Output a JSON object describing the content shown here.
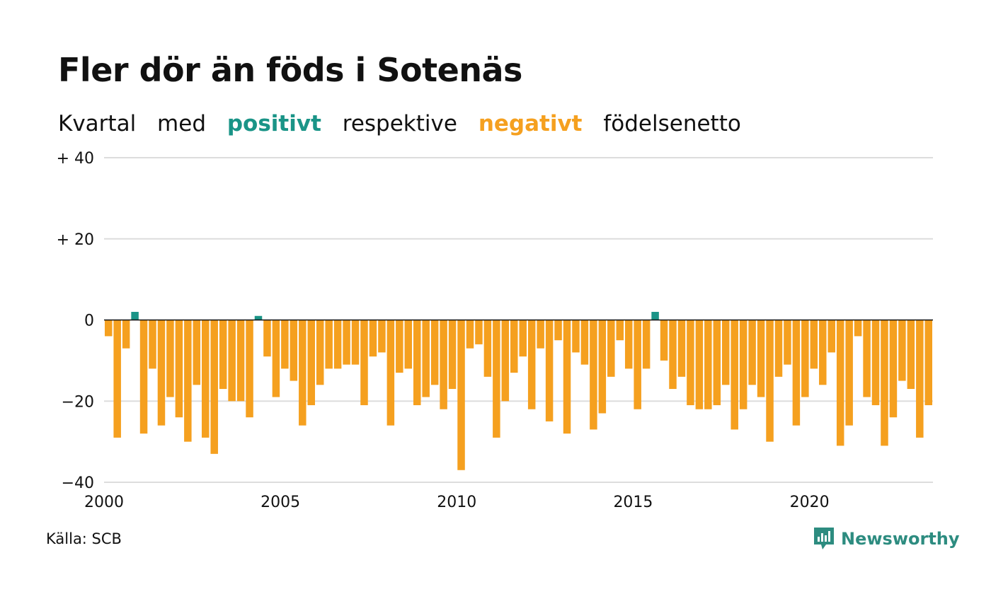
{
  "title": "Fler dör än föds i Sotenäs",
  "subtitle": {
    "w1": "Kvartal",
    "w2": "med",
    "positive": "positivt",
    "w3": "respektive",
    "negative": "negativt",
    "w4": "födelsenetto"
  },
  "colors": {
    "positive": "#1a9487",
    "negative": "#f5a01f",
    "brand": "#2d8c80"
  },
  "source": "Källa: SCB",
  "brand": {
    "name": "Newsworthy",
    "icon": "bar-chart-speech-bubble-icon"
  },
  "chart_data": {
    "type": "bar",
    "y_ticks": [
      {
        "value": 40,
        "label": "+ 40"
      },
      {
        "value": 20,
        "label": "+ 20"
      },
      {
        "value": 0,
        "label": "0"
      },
      {
        "value": -20,
        "label": "−20"
      },
      {
        "value": -40,
        "label": "−40"
      }
    ],
    "x_ticks": [
      {
        "value": 2000,
        "label": "2000"
      },
      {
        "value": 2005,
        "label": "2005"
      },
      {
        "value": 2010,
        "label": "2010"
      },
      {
        "value": 2015,
        "label": "2015"
      },
      {
        "value": 2020,
        "label": "2020"
      }
    ],
    "ylim": [
      -40,
      40
    ],
    "x_start": "2000-Q1",
    "grid": true,
    "values": [
      -4,
      -29,
      -7,
      2,
      -28,
      -12,
      -26,
      -19,
      -24,
      -30,
      -16,
      -29,
      -33,
      -17,
      -20,
      -20,
      -24,
      1,
      -9,
      -19,
      -12,
      -15,
      -26,
      -21,
      -16,
      -12,
      -12,
      -11,
      -11,
      -21,
      -9,
      -8,
      -26,
      -13,
      -12,
      -21,
      -19,
      -16,
      -22,
      -17,
      -37,
      -7,
      -6,
      -14,
      -29,
      -20,
      -13,
      -9,
      -22,
      -7,
      -25,
      -5,
      -28,
      -8,
      -11,
      -27,
      -23,
      -14,
      -5,
      -12,
      -22,
      -12,
      2,
      -10,
      -17,
      -14,
      -21,
      -22,
      -22,
      -21,
      -16,
      -27,
      -22,
      -16,
      -19,
      -30,
      -14,
      -11,
      -26,
      -19,
      -12,
      -16,
      -8,
      -31,
      -26,
      -4,
      -19,
      -21,
      -31,
      -24,
      -15,
      -17,
      -29,
      -21
    ]
  }
}
